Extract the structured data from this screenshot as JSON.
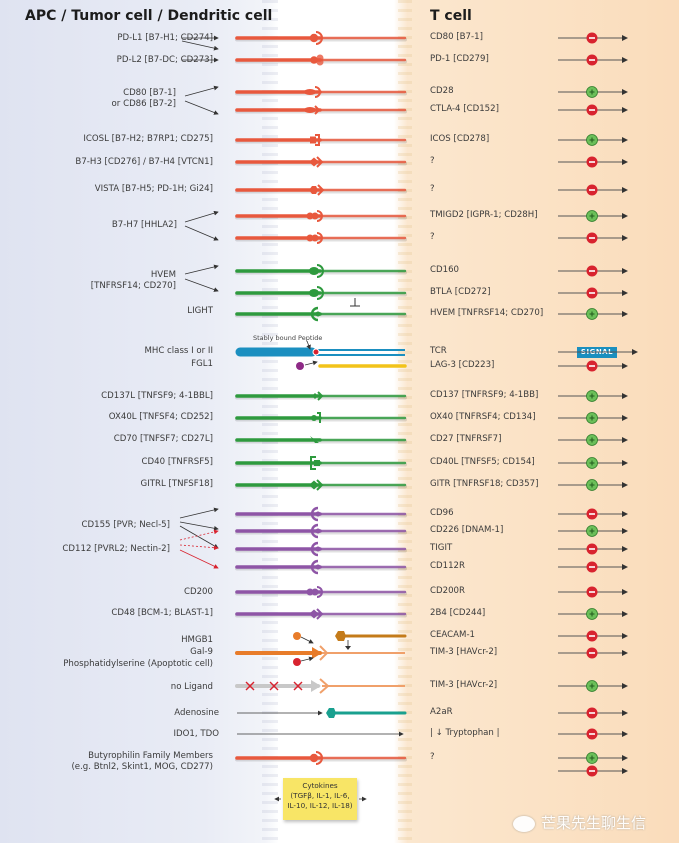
{
  "headers": {
    "left": "APC / Tumor cell / Dendritic cell",
    "right": "T cell"
  },
  "colors": {
    "b7_family": "#e8583d",
    "tnf_family_inhib": "#2e9a3e",
    "tnf_costim": "#2e9a3e",
    "tcr": "#1b8fc0",
    "lag3": "#f2c31a",
    "nectin": "#8e55a6",
    "tim3": "#e87c2a",
    "ceacam": "#c47b1a",
    "no_ligand": "#c8c8c8",
    "a2ar": "#19a08f",
    "inhibitory": "#d8232f",
    "stimulatory": "#6bbf59",
    "signal": "#1a8fbf",
    "cytokine_box": "#f8e566"
  },
  "ligands": [
    {
      "id": "pdl1",
      "label": "PD-L1 [B7-H1; CD274]"
    },
    {
      "id": "pdl2",
      "label": "PD-L2 [B7-DC; CD273]"
    },
    {
      "id": "cd80_86",
      "label": "CD80 [B7-1]\nor CD86 [B7-2]",
      "lines": [
        "CD80 [B7-1]",
        "or CD86 [B7-2]"
      ]
    },
    {
      "id": "icosl",
      "label": "ICOSL [B7-H2; B7RP1; CD275]"
    },
    {
      "id": "b7h3",
      "label": "B7-H3 [CD276] / B7-H4 [VTCN1]"
    },
    {
      "id": "vista",
      "label": "VISTA [B7-H5; PD-1H; Gi24]"
    },
    {
      "id": "b7h7",
      "label": "B7-H7 [HHLA2]"
    },
    {
      "id": "hvem",
      "label": "HVEM\n[TNFRSF14; CD270]",
      "lines": [
        "HVEM",
        "[TNFRSF14; CD270]"
      ]
    },
    {
      "id": "light",
      "label": "LIGHT"
    },
    {
      "id": "mhc",
      "label": "MHC class I or II"
    },
    {
      "id": "fgl1",
      "label": "FGL1"
    },
    {
      "id": "cd137l",
      "label": "CD137L [TNFSF9; 4-1BBL]"
    },
    {
      "id": "ox40l",
      "label": "OX40L [TNFSF4; CD252]"
    },
    {
      "id": "cd70",
      "label": "CD70 [TNFSF7; CD27L]"
    },
    {
      "id": "cd40",
      "label": "CD40 [TNFRSF5]"
    },
    {
      "id": "gitrl",
      "label": "GITRL [TNFSF18]"
    },
    {
      "id": "cd155",
      "label": "CD155 [PVR; Necl-5]"
    },
    {
      "id": "cd112",
      "label": "CD112 [PVRL2; Nectin-2]"
    },
    {
      "id": "cd200",
      "label": "CD200"
    },
    {
      "id": "cd48",
      "label": "CD48 [BCM-1; BLAST-1]"
    },
    {
      "id": "hmgb1",
      "label": "HMGB1"
    },
    {
      "id": "gal9",
      "label": "Gal-9"
    },
    {
      "id": "ps",
      "label": "Phosphatidylserine (Apoptotic cell)"
    },
    {
      "id": "noligand",
      "label": "no Ligand"
    },
    {
      "id": "adenosine",
      "label": "Adenosine"
    },
    {
      "id": "ido",
      "label": "IDO1, TDO"
    },
    {
      "id": "btn",
      "label": "Butyrophilin Family Members\n(e.g. Btnl2, Skint1, MOG, CD277)",
      "lines": [
        "Butyrophilin Family Members",
        "(e.g. Btnl2, Skint1, MOG, CD277)"
      ]
    }
  ],
  "receptors": [
    {
      "label": "CD80 [B7-1]",
      "effect": "inhibitory"
    },
    {
      "label": "PD-1 [CD279]",
      "effect": "inhibitory"
    },
    {
      "label": "CD28",
      "effect": "stimulatory"
    },
    {
      "label": "CTLA-4 [CD152]",
      "effect": "inhibitory"
    },
    {
      "label": "ICOS [CD278]",
      "effect": "stimulatory"
    },
    {
      "label": "?",
      "effect": "inhibitory"
    },
    {
      "label": "?",
      "effect": "inhibitory"
    },
    {
      "label": "TMIGD2 [IGPR-1; CD28H]",
      "effect": "stimulatory"
    },
    {
      "label": "?",
      "effect": "inhibitory"
    },
    {
      "label": "CD160",
      "effect": "inhibitory"
    },
    {
      "label": "BTLA [CD272]",
      "effect": "inhibitory"
    },
    {
      "label": "HVEM [TNFRSF14; CD270]",
      "effect": "stimulatory"
    },
    {
      "label": "TCR",
      "effect": "signal"
    },
    {
      "label": "LAG-3 [CD223]",
      "effect": "inhibitory"
    },
    {
      "label": "CD137 [TNFRSF9; 4-1BB]",
      "effect": "stimulatory"
    },
    {
      "label": "OX40 [TNFRSF4; CD134]",
      "effect": "stimulatory"
    },
    {
      "label": "CD27 [TNFRSF7]",
      "effect": "stimulatory"
    },
    {
      "label": "CD40L [TNFSF5; CD154]",
      "effect": "stimulatory"
    },
    {
      "label": "GITR [TNFRSF18; CD357]",
      "effect": "stimulatory"
    },
    {
      "label": "CD96",
      "effect": "inhibitory"
    },
    {
      "label": "CD226 [DNAM-1]",
      "effect": "stimulatory"
    },
    {
      "label": "TIGIT",
      "effect": "inhibitory"
    },
    {
      "label": "CD112R",
      "effect": "inhibitory"
    },
    {
      "label": "CD200R",
      "effect": "inhibitory"
    },
    {
      "label": "2B4 [CD244]",
      "effect": "stimulatory"
    },
    {
      "label": "CEACAM-1",
      "effect": "inhibitory"
    },
    {
      "label": "TIM-3 [HAVcr-2]",
      "effect": "inhibitory"
    },
    {
      "label": "TIM-3 [HAVcr-2]",
      "effect": "stimulatory"
    },
    {
      "label": "A2aR",
      "effect": "inhibitory"
    },
    {
      "label": "| ↓ Tryptophan |",
      "effect": "inhibitory"
    },
    {
      "label": "?",
      "effect": "stimulatory_and_inhibitory"
    }
  ],
  "annotations": {
    "peptide": "Stably bound Peptide",
    "signal": "SIGNAL",
    "cytokines_lines": [
      "Cytokines",
      "(TGFβ, IL-1, IL-6,",
      "IL-10, IL-12, IL-18)"
    ]
  },
  "icons": {
    "inhibitory": "minus-circle-icon",
    "stimulatory": "plus-circle-icon",
    "blocked": "x-mark-icon"
  },
  "watermark": "芒果先生聊生信"
}
